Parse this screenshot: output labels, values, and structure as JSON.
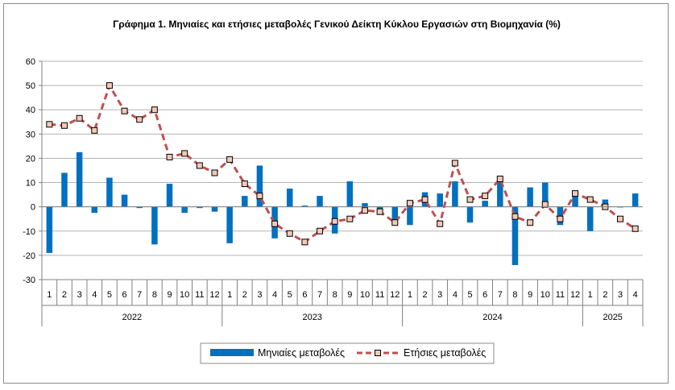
{
  "chart_data": {
    "type": "bar+line",
    "title": "Γράφημα 1. Μηνιαίες και ετήσιες μεταβολές  Γενικού Δείκτη Κύκλου Εργασιών στη Βιομηχανία (%)",
    "ylim": [
      -30,
      60
    ],
    "yticks": [
      -30,
      -20,
      -10,
      0,
      10,
      20,
      30,
      40,
      50,
      60
    ],
    "months": [
      "1",
      "2",
      "3",
      "4",
      "5",
      "6",
      "7",
      "8",
      "9",
      "10",
      "11",
      "12",
      "1",
      "2",
      "3",
      "4",
      "5",
      "6",
      "7",
      "8",
      "9",
      "10",
      "11",
      "12",
      "1",
      "2",
      "3",
      "4",
      "5",
      "6",
      "7",
      "8",
      "9",
      "10",
      "11",
      "12",
      "1",
      "2",
      "3",
      "4"
    ],
    "years": [
      {
        "label": "2022",
        "count": 12
      },
      {
        "label": "2023",
        "count": 12
      },
      {
        "label": "2024",
        "count": 12
      },
      {
        "label": "2025",
        "count": 4
      }
    ],
    "series": [
      {
        "name": "Μηνιαίες μεταβολές",
        "type": "bar",
        "color": "#0070C0",
        "values": [
          -19,
          14,
          22.5,
          -2.5,
          12,
          5,
          -0.5,
          -15.5,
          9.5,
          -2.5,
          -0.5,
          -2,
          -15,
          4.5,
          17,
          -13,
          7.5,
          0.5,
          4.5,
          -11,
          10.5,
          1.5,
          -2,
          -5.5,
          -7.5,
          6,
          5.5,
          10.5,
          -6.5,
          2.5,
          11.5,
          -24,
          8,
          10,
          -7.5,
          5,
          -10,
          3,
          0,
          5.5
        ]
      },
      {
        "name": "Ετήσιες μεταβολές",
        "type": "line",
        "color": "#C0504D",
        "values": [
          34,
          33.5,
          36.5,
          31.5,
          50,
          39.5,
          36,
          40,
          20.5,
          22,
          17,
          14,
          19.5,
          9.5,
          4.5,
          -7,
          -11,
          -14.5,
          -10,
          -6,
          -5,
          -1.5,
          -2,
          -6.5,
          1.5,
          3,
          -7,
          18,
          3,
          4.5,
          11.5,
          -4,
          -6.5,
          1,
          -5,
          5.5,
          3,
          0,
          -5,
          -9
        ]
      }
    ],
    "legend_position": "bottom-center"
  }
}
